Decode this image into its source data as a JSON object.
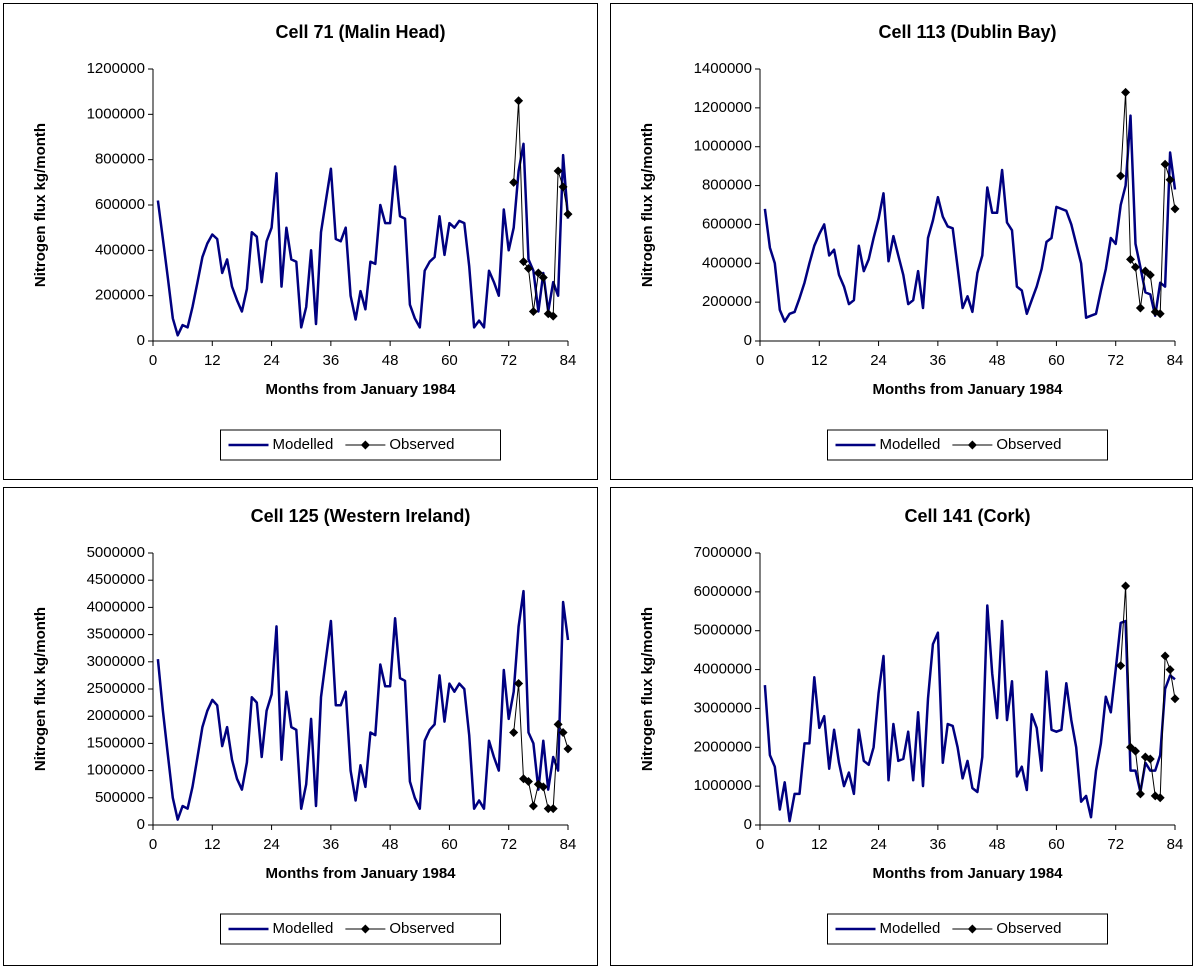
{
  "chart_data": [
    {
      "type": "line",
      "title": "Cell 71 (Malin Head)",
      "x_label": "Months from January 1984",
      "y_label": "Nitrogen flux kg/month",
      "xlim": [
        0,
        84
      ],
      "xticks": [
        0,
        12,
        24,
        36,
        48,
        60,
        72,
        84
      ],
      "ylim": [
        0,
        1200000
      ],
      "yticks": [
        0,
        200000,
        400000,
        600000,
        800000,
        1000000,
        1200000
      ],
      "series": [
        {
          "name": "Modelled",
          "color": "#000080",
          "x": [
            1,
            2,
            3,
            4,
            5,
            6,
            7,
            8,
            9,
            10,
            11,
            12,
            13,
            14,
            15,
            16,
            17,
            18,
            19,
            20,
            21,
            22,
            23,
            24,
            25,
            26,
            27,
            28,
            29,
            30,
            31,
            32,
            33,
            34,
            35,
            36,
            37,
            38,
            39,
            40,
            41,
            42,
            43,
            44,
            45,
            46,
            47,
            48,
            49,
            50,
            51,
            52,
            53,
            54,
            55,
            56,
            57,
            58,
            59,
            60,
            61,
            62,
            63,
            64,
            65,
            66,
            67,
            68,
            69,
            70,
            71,
            72,
            73,
            74,
            75,
            76,
            77,
            78,
            79,
            80,
            81,
            82,
            83,
            84
          ],
          "values": [
            620000,
            450000,
            280000,
            100000,
            25000,
            70000,
            60000,
            150000,
            260000,
            370000,
            430000,
            470000,
            450000,
            300000,
            360000,
            240000,
            180000,
            130000,
            230000,
            480000,
            460000,
            260000,
            440000,
            500000,
            740000,
            240000,
            500000,
            360000,
            350000,
            60000,
            150000,
            400000,
            75000,
            480000,
            620000,
            760000,
            450000,
            440000,
            500000,
            200000,
            95000,
            220000,
            140000,
            350000,
            340000,
            600000,
            520000,
            520000,
            770000,
            550000,
            540000,
            160000,
            100000,
            60000,
            310000,
            350000,
            370000,
            550000,
            380000,
            520000,
            500000,
            530000,
            520000,
            330000,
            60000,
            90000,
            60000,
            310000,
            260000,
            200000,
            580000,
            400000,
            500000,
            750000,
            870000,
            360000,
            310000,
            130000,
            300000,
            130000,
            260000,
            200000,
            820000,
            540000
          ]
        },
        {
          "name": "Observed",
          "color": "#000000",
          "marker": "diamond",
          "x": [
            73,
            74,
            75,
            76,
            77,
            78,
            79,
            80,
            81,
            82,
            83,
            84
          ],
          "values": [
            700000,
            1060000,
            350000,
            320000,
            130000,
            300000,
            280000,
            120000,
            110000,
            750000,
            680000,
            560000
          ]
        }
      ]
    },
    {
      "type": "line",
      "title": "Cell 113 (Dublin Bay)",
      "x_label": "Months from January 1984",
      "y_label": "Nitrogen flux kg/month",
      "xlim": [
        0,
        84
      ],
      "xticks": [
        0,
        12,
        24,
        36,
        48,
        60,
        72,
        84
      ],
      "ylim": [
        0,
        1400000
      ],
      "yticks": [
        0,
        200000,
        400000,
        600000,
        800000,
        1000000,
        1200000,
        1400000
      ],
      "series": [
        {
          "name": "Modelled",
          "color": "#000080",
          "x": [
            1,
            2,
            3,
            4,
            5,
            6,
            7,
            8,
            9,
            10,
            11,
            12,
            13,
            14,
            15,
            16,
            17,
            18,
            19,
            20,
            21,
            22,
            23,
            24,
            25,
            26,
            27,
            28,
            29,
            30,
            31,
            32,
            33,
            34,
            35,
            36,
            37,
            38,
            39,
            40,
            41,
            42,
            43,
            44,
            45,
            46,
            47,
            48,
            49,
            50,
            51,
            52,
            53,
            54,
            55,
            56,
            57,
            58,
            59,
            60,
            61,
            62,
            63,
            64,
            65,
            66,
            67,
            68,
            69,
            70,
            71,
            72,
            73,
            74,
            75,
            76,
            77,
            78,
            79,
            80,
            81,
            82,
            83,
            84
          ],
          "values": [
            680000,
            480000,
            400000,
            160000,
            100000,
            140000,
            150000,
            220000,
            300000,
            400000,
            490000,
            550000,
            600000,
            440000,
            470000,
            340000,
            280000,
            190000,
            210000,
            490000,
            360000,
            420000,
            530000,
            630000,
            760000,
            410000,
            540000,
            440000,
            340000,
            190000,
            210000,
            360000,
            170000,
            530000,
            620000,
            740000,
            640000,
            590000,
            580000,
            380000,
            170000,
            230000,
            150000,
            350000,
            440000,
            790000,
            660000,
            660000,
            880000,
            610000,
            570000,
            280000,
            260000,
            140000,
            210000,
            280000,
            370000,
            510000,
            530000,
            690000,
            680000,
            670000,
            600000,
            500000,
            400000,
            120000,
            130000,
            140000,
            260000,
            370000,
            530000,
            500000,
            700000,
            800000,
            1160000,
            500000,
            380000,
            250000,
            240000,
            130000,
            300000,
            280000,
            970000,
            780000
          ]
        },
        {
          "name": "Observed",
          "color": "#000000",
          "marker": "diamond",
          "x": [
            73,
            74,
            75,
            76,
            77,
            78,
            79,
            80,
            81,
            82,
            83,
            84
          ],
          "values": [
            850000,
            1280000,
            420000,
            380000,
            170000,
            360000,
            340000,
            150000,
            140000,
            910000,
            830000,
            680000
          ]
        }
      ]
    },
    {
      "type": "line",
      "title": "Cell 125 (Western Ireland)",
      "x_label": "Months from January 1984",
      "y_label": "Nitrogen flux kg/month",
      "xlim": [
        0,
        84
      ],
      "xticks": [
        0,
        12,
        24,
        36,
        48,
        60,
        72,
        84
      ],
      "ylim": [
        0,
        5000000
      ],
      "yticks": [
        0,
        500000,
        1000000,
        1500000,
        2000000,
        2500000,
        3000000,
        3500000,
        4000000,
        4500000,
        5000000
      ],
      "series": [
        {
          "name": "Modelled",
          "color": "#000080",
          "x": [
            1,
            2,
            3,
            4,
            5,
            6,
            7,
            8,
            9,
            10,
            11,
            12,
            13,
            14,
            15,
            16,
            17,
            18,
            19,
            20,
            21,
            22,
            23,
            24,
            25,
            26,
            27,
            28,
            29,
            30,
            31,
            32,
            33,
            34,
            35,
            36,
            37,
            38,
            39,
            40,
            41,
            42,
            43,
            44,
            45,
            46,
            47,
            48,
            49,
            50,
            51,
            52,
            53,
            54,
            55,
            56,
            57,
            58,
            59,
            60,
            61,
            62,
            63,
            64,
            65,
            66,
            67,
            68,
            69,
            70,
            71,
            72,
            73,
            74,
            75,
            76,
            77,
            78,
            79,
            80,
            81,
            82,
            83,
            84
          ],
          "values": [
            3050000,
            2100000,
            1300000,
            500000,
            100000,
            350000,
            300000,
            700000,
            1250000,
            1800000,
            2100000,
            2300000,
            2200000,
            1450000,
            1800000,
            1200000,
            850000,
            650000,
            1150000,
            2350000,
            2250000,
            1250000,
            2100000,
            2400000,
            3650000,
            1200000,
            2450000,
            1800000,
            1750000,
            300000,
            750000,
            1950000,
            350000,
            2350000,
            3050000,
            3750000,
            2200000,
            2200000,
            2450000,
            1000000,
            450000,
            1100000,
            700000,
            1700000,
            1650000,
            2950000,
            2550000,
            2550000,
            3800000,
            2700000,
            2650000,
            800000,
            500000,
            300000,
            1550000,
            1750000,
            1850000,
            2750000,
            1900000,
            2600000,
            2450000,
            2600000,
            2500000,
            1650000,
            300000,
            450000,
            300000,
            1550000,
            1250000,
            1000000,
            2850000,
            1950000,
            2450000,
            3650000,
            4300000,
            1700000,
            1500000,
            650000,
            1550000,
            650000,
            1250000,
            1000000,
            4100000,
            3400000
          ]
        },
        {
          "name": "Observed",
          "color": "#000000",
          "marker": "diamond",
          "x": [
            73,
            74,
            75,
            76,
            77,
            78,
            79,
            80,
            81,
            82,
            83,
            84
          ],
          "values": [
            1700000,
            2600000,
            850000,
            800000,
            350000,
            750000,
            700000,
            300000,
            300000,
            1850000,
            1700000,
            1400000
          ]
        }
      ]
    },
    {
      "type": "line",
      "title": "Cell 141 (Cork)",
      "x_label": "Months from January 1984",
      "y_label": "Nitrogen flux kg/month",
      "xlim": [
        0,
        84
      ],
      "xticks": [
        0,
        12,
        24,
        36,
        48,
        60,
        72,
        84
      ],
      "ylim": [
        0,
        7000000
      ],
      "yticks": [
        0,
        1000000,
        2000000,
        3000000,
        4000000,
        5000000,
        6000000,
        7000000
      ],
      "series": [
        {
          "name": "Modelled",
          "color": "#000080",
          "x": [
            1,
            2,
            3,
            4,
            5,
            6,
            7,
            8,
            9,
            10,
            11,
            12,
            13,
            14,
            15,
            16,
            17,
            18,
            19,
            20,
            21,
            22,
            23,
            24,
            25,
            26,
            27,
            28,
            29,
            30,
            31,
            32,
            33,
            34,
            35,
            36,
            37,
            38,
            39,
            40,
            41,
            42,
            43,
            44,
            45,
            46,
            47,
            48,
            49,
            50,
            51,
            52,
            53,
            54,
            55,
            56,
            57,
            58,
            59,
            60,
            61,
            62,
            63,
            64,
            65,
            66,
            67,
            68,
            69,
            70,
            71,
            72,
            73,
            74,
            75,
            76,
            77,
            78,
            79,
            80,
            81,
            82,
            83,
            84
          ],
          "values": [
            3600000,
            1800000,
            1500000,
            400000,
            1100000,
            100000,
            800000,
            800000,
            2100000,
            2100000,
            3800000,
            2500000,
            2800000,
            1450000,
            2450000,
            1600000,
            1000000,
            1350000,
            800000,
            2450000,
            1650000,
            1550000,
            2000000,
            3400000,
            4350000,
            1150000,
            2600000,
            1650000,
            1700000,
            2400000,
            1150000,
            2900000,
            1000000,
            3250000,
            4650000,
            4950000,
            1600000,
            2600000,
            2550000,
            2000000,
            1200000,
            1650000,
            950000,
            850000,
            1750000,
            5650000,
            3900000,
            2750000,
            5250000,
            2700000,
            3700000,
            1250000,
            1500000,
            900000,
            2850000,
            2500000,
            1400000,
            3950000,
            2450000,
            2400000,
            2450000,
            3650000,
            2700000,
            2000000,
            600000,
            750000,
            200000,
            1400000,
            2100000,
            3300000,
            2900000,
            4000000,
            5200000,
            5250000,
            1400000,
            1400000,
            850000,
            1600000,
            1400000,
            1400000,
            1800000,
            3500000,
            3850000,
            3750000
          ]
        },
        {
          "name": "Observed",
          "color": "#000000",
          "marker": "diamond",
          "x": [
            73,
            74,
            75,
            76,
            77,
            78,
            79,
            80,
            81,
            82,
            83,
            84
          ],
          "values": [
            4100000,
            6150000,
            2000000,
            1900000,
            800000,
            1750000,
            1700000,
            750000,
            700000,
            4350000,
            4000000,
            3250000
          ]
        }
      ]
    }
  ]
}
